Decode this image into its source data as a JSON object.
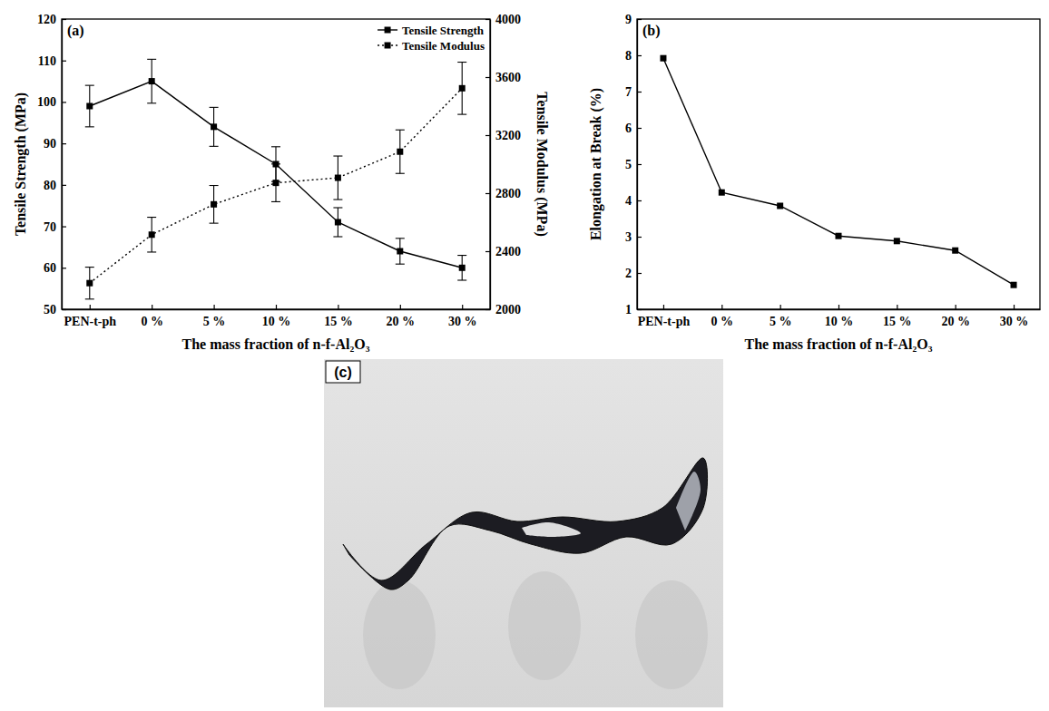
{
  "chart_data": [
    {
      "type": "line",
      "title": "(a)",
      "categories": [
        "PEN-t-ph",
        "0 %",
        "5 %",
        "10 %",
        "15 %",
        "20 %",
        "30 %"
      ],
      "xlabel": "The mass fraction of n-f-Al₂O₃",
      "ylabel": "Tensile Strength (MPa)",
      "y2label": "Tensile Modulus (MPa)",
      "ylim": [
        50,
        120
      ],
      "yticks": [
        50,
        60,
        70,
        80,
        90,
        100,
        110,
        120
      ],
      "y2lim": [
        2000,
        4000
      ],
      "y2ticks": [
        2000,
        2400,
        2800,
        3200,
        3600,
        4000
      ],
      "legend": "upper right",
      "series": [
        {
          "name": "Tensile Strength",
          "color": "#000000",
          "marker": "square",
          "line_style": "solid",
          "values": [
            99,
            105,
            94,
            85,
            71,
            64,
            60
          ],
          "errors": [
            5,
            5.3,
            4.7,
            4.2,
            3.5,
            3.1,
            3
          ]
        },
        {
          "name": "Tensile Modulus",
          "color": "#000000",
          "marker": "square",
          "line_style": "dotted",
          "axis": "y2",
          "values": [
            2180,
            2514,
            2723,
            2871,
            2906,
            3086,
            3523
          ],
          "errors": [
            110,
            120,
            130,
            130,
            150,
            150,
            180
          ]
        }
      ]
    },
    {
      "type": "line",
      "title": "(b)",
      "categories": [
        "PEN-t-ph",
        "0 %",
        "5 %",
        "10 %",
        "15 %",
        "20 %",
        "30 %"
      ],
      "xlabel": "The mass fraction of n-f-Al₂O₃",
      "ylabel": "Elongation at Break (%)",
      "ylim": [
        1,
        9
      ],
      "yticks": [
        1,
        2,
        3,
        4,
        5,
        6,
        7,
        8,
        9
      ],
      "series": [
        {
          "color": "#000000",
          "marker": "square",
          "line_style": "solid",
          "values": [
            7.92,
            4.22,
            3.85,
            3.02,
            2.88,
            2.62,
            1.67
          ]
        }
      ]
    }
  ],
  "image": {
    "title": "(c)"
  }
}
